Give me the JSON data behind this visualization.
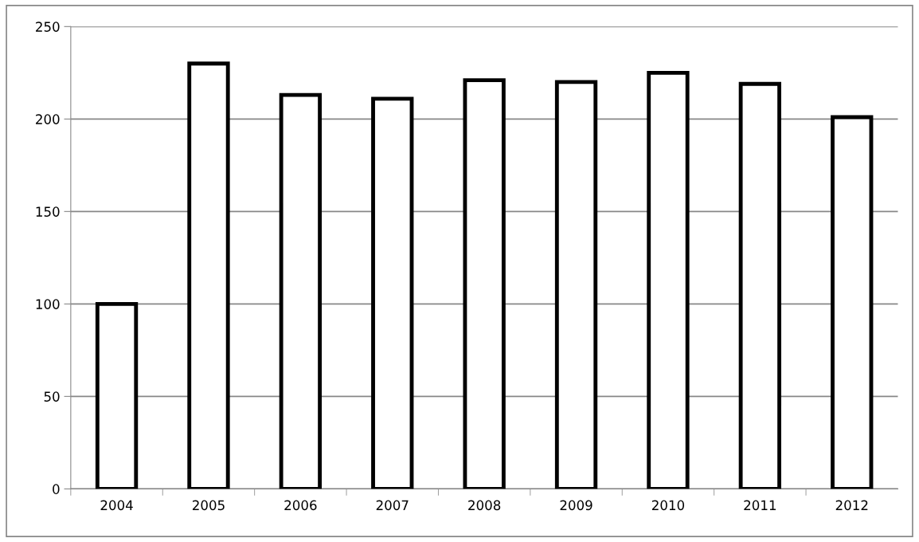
{
  "chart_data": {
    "type": "bar",
    "categories": [
      "2004",
      "2005",
      "2006",
      "2007",
      "2008",
      "2009",
      "2010",
      "2011",
      "2012"
    ],
    "values": [
      100,
      230,
      213,
      211,
      221,
      220,
      225,
      219,
      201
    ],
    "color": "#ffffff",
    "ylim": [
      0,
      250
    ],
    "yticks": [
      0,
      50,
      100,
      150,
      200,
      250
    ],
    "grid": "y",
    "legend": false
  }
}
